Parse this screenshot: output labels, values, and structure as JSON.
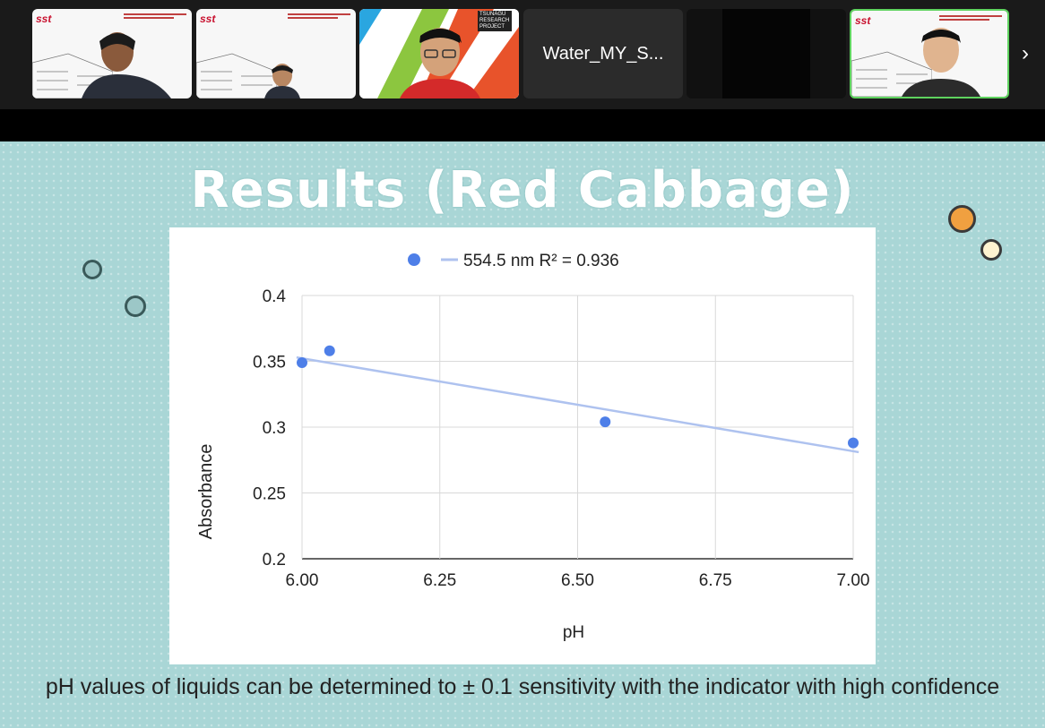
{
  "participants": [
    {
      "kind": "video",
      "logo": "sst"
    },
    {
      "kind": "video",
      "logo": "sst"
    },
    {
      "kind": "video",
      "overlay": "TSUNAGU RESEARCH PROJECT"
    },
    {
      "kind": "name",
      "name": "Water_MY_S..."
    },
    {
      "kind": "dark"
    },
    {
      "kind": "video",
      "logo": "sst",
      "active": true
    }
  ],
  "nav": {
    "next_icon": "chevron-right-icon",
    "next_glyph": "›"
  },
  "slide": {
    "title": "Results (Red Cabbage)",
    "caption": "pH values of liquids can be determined to ± 0.1 sensitivity with the indicator with high confidence",
    "bg_color": "#a9d6d6"
  },
  "chart_data": {
    "type": "scatter",
    "legend": {
      "marker_label": "",
      "trend_label": "554.5 nm R² = 0.936",
      "position": "top"
    },
    "xlabel": "pH",
    "ylabel": "Absorbance",
    "xlim": [
      6.0,
      7.0
    ],
    "ylim": [
      0.2,
      0.4
    ],
    "x_ticks": [
      "6.00",
      "6.25",
      "6.50",
      "6.75",
      "7.00"
    ],
    "y_ticks": [
      "0.2",
      "0.25",
      "0.3",
      "0.35",
      "0.4"
    ],
    "points": [
      {
        "x": 6.0,
        "y": 0.349
      },
      {
        "x": 6.05,
        "y": 0.358
      },
      {
        "x": 6.55,
        "y": 0.304
      },
      {
        "x": 7.0,
        "y": 0.288
      }
    ],
    "trendline": {
      "x": [
        5.99,
        7.01
      ],
      "y": [
        0.353,
        0.281
      ]
    },
    "point_color": "#4e7fe8",
    "trend_color": "#aec2ef",
    "grid": true
  }
}
